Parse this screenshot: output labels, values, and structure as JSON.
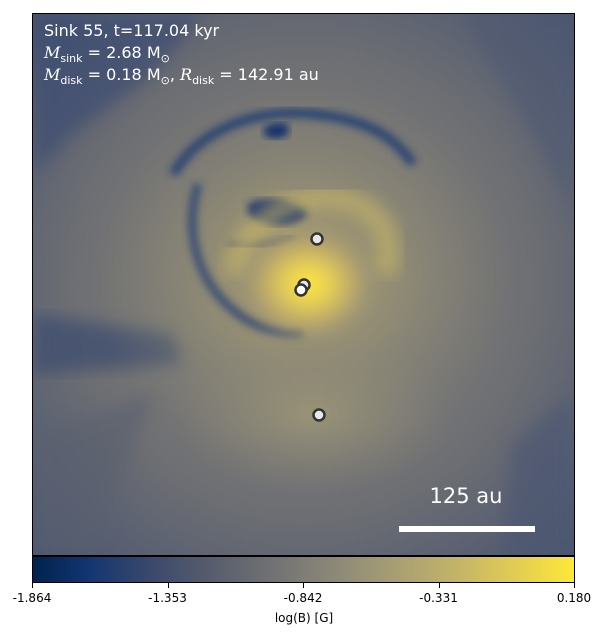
{
  "annotation": {
    "line1": "Sink 55, t=117.04 kyr",
    "line2_symbol": "M",
    "line2_sub": "sink",
    "line2_value": " = 2.68 M",
    "line2_unit": "⊙",
    "line3_symbol": "M",
    "line3_sub": "disk",
    "line3_value": " = 0.18 M",
    "line3_unit": "⊙",
    "line3_sep": ", ",
    "line3_symbol2": "R",
    "line3_sub2": "disk",
    "line3_value2": " = 142.91 au"
  },
  "scale_bar": {
    "label": "125 au"
  },
  "colorbar": {
    "label": "log(B) [G]",
    "colormap": "cividis",
    "min": -1.864,
    "max": 0.18,
    "ticks": [
      "-1.864",
      "-1.353",
      "-0.842",
      "-0.331",
      "0.180"
    ]
  },
  "sinks": [
    {
      "id": "sink-a"
    },
    {
      "id": "sink-b"
    },
    {
      "id": "sink-c"
    },
    {
      "id": "sink-d"
    }
  ]
}
